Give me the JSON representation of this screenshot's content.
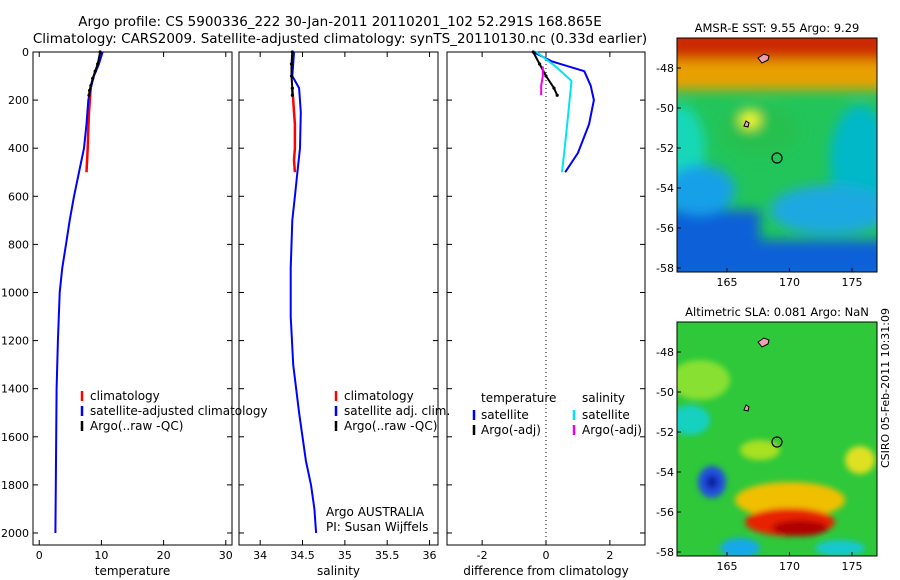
{
  "title": {
    "line1": "Argo profile: CS 5900336_222 30-Jan-2011 20110201_102 52.291S 168.865E",
    "line2": "Climatology: CARS2009. Satellite-adjusted climatology: synTS_20110130.nc (0.33d earlier)"
  },
  "footer": {
    "operator": "Argo AUSTRALIA",
    "pi": "PI: Susan Wijffels",
    "stamp": "CSIRO 05-Feb-2011 10:31:09"
  },
  "colors": {
    "climatology": "#ff0000",
    "satellite": "#0000ff",
    "argo": "#000000",
    "salinity_satellite": "#00e5ee",
    "salinity_argo": "#ee00ee"
  },
  "chart_data": [
    {
      "id": "temperature",
      "type": "line",
      "xlabel": "temperature",
      "xlim": [
        -1,
        31
      ],
      "xticks": [
        0,
        10,
        20,
        30
      ],
      "ylim": [
        2050,
        0
      ],
      "yticks": [
        0,
        200,
        400,
        600,
        800,
        1000,
        1200,
        1400,
        1600,
        1800,
        2000
      ],
      "legend": [
        "climatology",
        "satellite-adjusted climatology",
        "Argo(..raw -QC)"
      ],
      "series": [
        {
          "name": "climatology",
          "color": "#ff0000",
          "x": [
            8.3,
            8.2,
            8.0,
            7.9,
            7.8,
            7.7,
            7.6
          ],
          "y": [
            140,
            180,
            250,
            320,
            400,
            450,
            500
          ]
        },
        {
          "name": "satellite-adjusted climatology",
          "color": "#0000ff",
          "x": [
            10.2,
            9.6,
            8.8,
            8.3,
            7.9,
            7.6,
            7.2,
            6.4,
            5.6,
            4.9,
            4.3,
            3.7,
            3.3,
            3.0,
            2.8,
            2.7,
            2.6
          ],
          "y": [
            0,
            50,
            100,
            150,
            200,
            300,
            400,
            500,
            600,
            700,
            800,
            900,
            1000,
            1200,
            1400,
            1700,
            2000
          ]
        },
        {
          "name": "Argo(..raw -QC)",
          "color": "#000000",
          "x": [
            9.8,
            9.4,
            9.0,
            8.6,
            8.3,
            8.1,
            8.0
          ],
          "y": [
            0,
            50,
            80,
            110,
            140,
            160,
            180
          ]
        }
      ]
    },
    {
      "id": "salinity",
      "type": "line",
      "xlabel": "salinity",
      "xlim": [
        33.75,
        36.1
      ],
      "xticks": [
        34,
        34.5,
        35,
        35.5,
        36
      ],
      "xticklabels": [
        "34",
        "34.5",
        "35",
        "35.5",
        "36"
      ],
      "ylim": [
        2050,
        0
      ],
      "yticks": [
        0,
        200,
        400,
        600,
        800,
        1000,
        1200,
        1400,
        1600,
        1800,
        2000
      ],
      "legend": [
        "climatology",
        "satellite adj. clim.",
        "Argo(..raw -QC)"
      ],
      "series": [
        {
          "name": "climatology",
          "color": "#ff0000",
          "x": [
            34.38,
            34.39,
            34.4,
            34.41,
            34.41,
            34.4,
            34.41
          ],
          "y": [
            150,
            200,
            250,
            300,
            400,
            450,
            500
          ]
        },
        {
          "name": "satellite adj. clim.",
          "color": "#0000ff",
          "x": [
            34.4,
            34.39,
            34.38,
            34.46,
            34.48,
            34.47,
            34.44,
            34.41,
            34.38,
            34.36,
            34.36,
            34.39,
            34.46,
            34.54,
            34.6,
            34.64,
            34.66
          ],
          "y": [
            0,
            50,
            100,
            150,
            250,
            400,
            500,
            600,
            700,
            900,
            1100,
            1300,
            1500,
            1700,
            1800,
            1900,
            2000
          ]
        },
        {
          "name": "Argo(..raw -QC)",
          "color": "#000000",
          "x": [
            34.38,
            34.37,
            34.37,
            34.38,
            34.38
          ],
          "y": [
            0,
            50,
            100,
            150,
            180
          ]
        }
      ]
    },
    {
      "id": "difference",
      "type": "line",
      "xlabel": "difference from climatology",
      "xlim": [
        -3.1,
        3.1
      ],
      "xticks": [
        -2,
        0,
        2
      ],
      "ylim": [
        2050,
        0
      ],
      "yticks": [
        0,
        200,
        400,
        600,
        800,
        1000,
        1200,
        1400,
        1600,
        1800,
        2000
      ],
      "legend": {
        "temperature_heading": "temperature",
        "salinity_heading": "salinity",
        "temperature": [
          "satellite",
          "Argo(-adj)"
        ],
        "salinity": [
          "satellite",
          "Argo(-adj)"
        ]
      },
      "series": [
        {
          "name": "temperature satellite",
          "color": "#0000ff",
          "x": [
            -0.4,
            0.2,
            1.2,
            1.4,
            1.5,
            1.35,
            1.0,
            0.6
          ],
          "y": [
            0,
            40,
            80,
            140,
            200,
            300,
            420,
            500
          ]
        },
        {
          "name": "temperature Argo(-adj)",
          "color": "#000000",
          "x": [
            -0.4,
            -0.2,
            0.0,
            0.25,
            0.35
          ],
          "y": [
            0,
            50,
            100,
            150,
            180
          ]
        },
        {
          "name": "salinity satellite",
          "color": "#00e5ee",
          "x": [
            -0.3,
            0.3,
            0.8,
            0.7,
            0.6,
            0.5
          ],
          "y": [
            0,
            60,
            120,
            250,
            380,
            500
          ]
        },
        {
          "name": "salinity Argo(-adj)",
          "color": "#ee00ee",
          "x": [
            -0.1,
            -0.1,
            -0.15,
            -0.15
          ],
          "y": [
            60,
            100,
            140,
            180
          ]
        }
      ]
    },
    {
      "id": "sst-map",
      "type": "heatmap",
      "title": "AMSR-E SST: 9.55 Argo: 9.29",
      "xlim": [
        161,
        177
      ],
      "xticks": [
        165,
        170,
        175
      ],
      "ylim": [
        -58.2,
        -46.5
      ],
      "yticks": [
        -48,
        -50,
        -52,
        -54,
        -56,
        -58
      ],
      "float_position": [
        168.865,
        -52.291
      ]
    },
    {
      "id": "sla-map",
      "type": "heatmap",
      "title": "Altimetric SLA: 0.081 Argo: NaN",
      "xlim": [
        161,
        177
      ],
      "xticks": [
        165,
        170,
        175
      ],
      "ylim": [
        -58.2,
        -46.5
      ],
      "yticks": [
        -48,
        -50,
        -52,
        -54,
        -56,
        -58
      ],
      "float_position": [
        168.865,
        -52.291
      ]
    }
  ]
}
